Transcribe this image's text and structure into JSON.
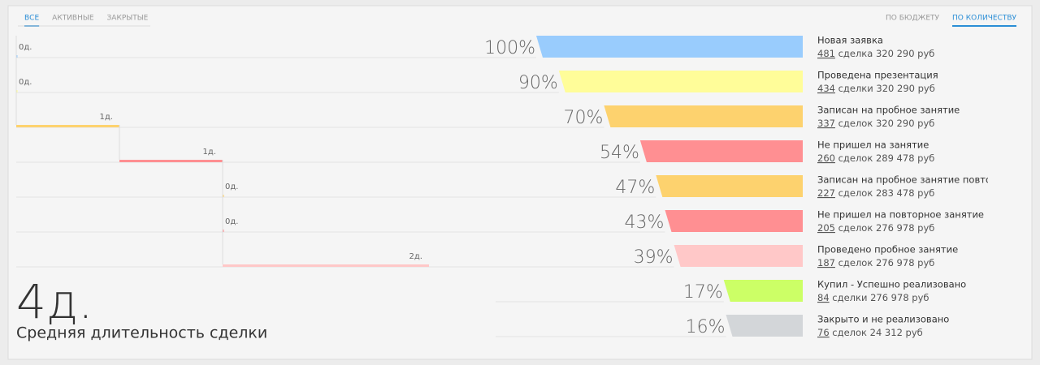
{
  "filters": {
    "items": [
      "ВСЕ",
      "АКТИВНЫЕ",
      "ЗАКРЫТЫЕ"
    ],
    "active": 0
  },
  "sort": {
    "items": [
      "ПО БЮДЖЕТУ",
      "ПО КОЛИЧЕСТВУ"
    ],
    "active": 1
  },
  "stages": [
    {
      "name": "Новая заявка",
      "percent": 100,
      "percent_label": "100%",
      "count": 481,
      "deals_word": "сделка",
      "sum": "320 290 руб",
      "days": 0,
      "days_label": "0д.",
      "color": "#99ccfd"
    },
    {
      "name": "Проведена презентация",
      "percent": 90,
      "percent_label": "90%",
      "count": 434,
      "deals_word": "сделки",
      "sum": "320 290 руб",
      "days": 0,
      "days_label": "0д.",
      "color": "#fffd99"
    },
    {
      "name": "Записан на пробное занятие",
      "percent": 70,
      "percent_label": "70%",
      "count": 337,
      "deals_word": "сделок",
      "sum": "320 290 руб",
      "days": 1,
      "days_label": "1д.",
      "color": "#fdd26e"
    },
    {
      "name": "Не пришел на занятие",
      "percent": 54,
      "percent_label": "54%",
      "count": 260,
      "deals_word": "сделок",
      "sum": "289 478 руб",
      "days": 1,
      "days_label": "1д.",
      "color": "#ff8f92"
    },
    {
      "name": "Записан на пробное занятие повторно",
      "percent": 47,
      "percent_label": "47%",
      "count": 227,
      "deals_word": "сделок",
      "sum": "283 478 руб",
      "days": 0,
      "days_label": "0д.",
      "color": "#fdd26e"
    },
    {
      "name": "Не пришел на повторное занятие",
      "percent": 43,
      "percent_label": "43%",
      "count": 205,
      "deals_word": "сделок",
      "sum": "276 978 руб",
      "days": 0,
      "days_label": "0д.",
      "color": "#ff8f92"
    },
    {
      "name": "Проведено пробное занятие",
      "percent": 39,
      "percent_label": "39%",
      "count": 187,
      "deals_word": "сделок",
      "sum": "276 978 руб",
      "days": 2,
      "days_label": "2д.",
      "color": "#ffc8c8"
    },
    {
      "name": "Купил - Успешно реализовано",
      "percent": 17,
      "percent_label": "17%",
      "count": 84,
      "deals_word": "сделки",
      "sum": "276 978 руб",
      "color": "#ccff66"
    },
    {
      "name": "Закрыто и не реализовано",
      "percent": 16,
      "percent_label": "16%",
      "count": 76,
      "deals_word": "сделок",
      "sum": "24 312 руб",
      "color": "#d3d6d9"
    }
  ],
  "summary": {
    "value": "4д.",
    "label": "Средняя длительность сделки"
  }
}
